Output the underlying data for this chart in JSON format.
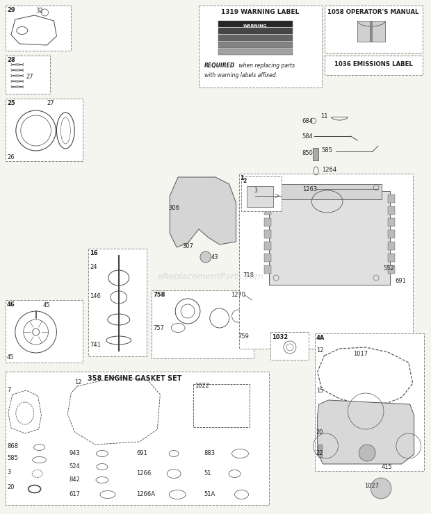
{
  "bg_color": "#f5f5f0",
  "border_color": "#888888",
  "box_color": "#ffffff",
  "warning_label_title": "1319 WARNING LABEL",
  "warning_required_bold": "REQUIRED",
  "warning_required_rest": " when replacing parts",
  "warning_required_line2": "with warning labels affixed.",
  "operators_manual_title": "1058 OPERATOR'S MANUAL",
  "emissions_label_title": "1036 EMISSIONS LABEL",
  "gasket_set_title": "358 ENGINE GASKET SET",
  "watermark": "eReplacementParts.com"
}
